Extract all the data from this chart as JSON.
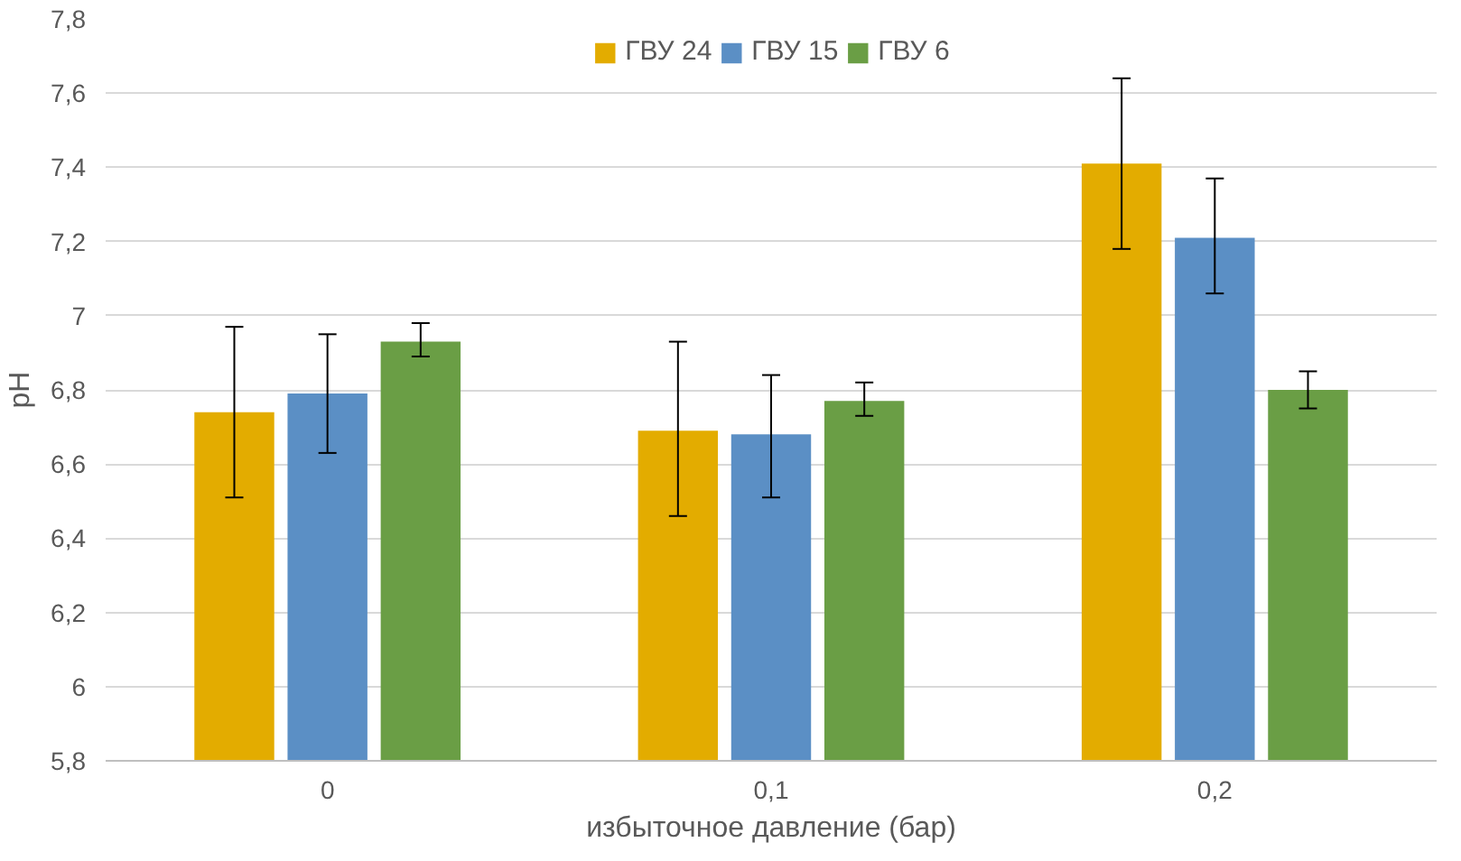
{
  "chart_data": {
    "type": "bar",
    "xlabel": "избыточное давление (бар)",
    "ylabel": "pH",
    "categories": [
      "0",
      "0,1",
      "0,2"
    ],
    "series": [
      {
        "name": "ГВУ 24",
        "color": "#e3ac00",
        "values": [
          6.74,
          6.69,
          7.41
        ],
        "errors": [
          [
            6.51,
            6.97
          ],
          [
            6.46,
            6.93
          ],
          [
            7.18,
            7.64
          ]
        ]
      },
      {
        "name": "ГВУ 15",
        "color": "#5b8fc5",
        "values": [
          6.79,
          6.68,
          7.21
        ],
        "errors": [
          [
            6.63,
            6.95
          ],
          [
            6.51,
            6.84
          ],
          [
            7.06,
            7.37
          ]
        ]
      },
      {
        "name": "ГВУ 6",
        "color": "#6a9e45",
        "values": [
          6.93,
          6.77,
          6.8
        ],
        "errors": [
          [
            6.89,
            6.98
          ],
          [
            6.73,
            6.82
          ],
          [
            6.75,
            6.85
          ]
        ]
      }
    ],
    "ylim": [
      5.8,
      7.8
    ],
    "yticks": [
      {
        "value": 5.8,
        "label": "5,8"
      },
      6,
      {
        "value": 6.2,
        "label": "6,2"
      },
      {
        "value": 6.4,
        "label": "6,4"
      },
      {
        "value": 6.6,
        "label": "6,6"
      },
      {
        "value": 6.8,
        "label": "6,8"
      },
      7,
      {
        "value": 7.2,
        "label": "7,2"
      },
      {
        "value": 7.4,
        "label": "7,4"
      },
      {
        "value": 7.6,
        "label": "7,6"
      },
      {
        "value": 7.8,
        "label": "7,8"
      }
    ],
    "grid": "y",
    "legend": "top"
  }
}
